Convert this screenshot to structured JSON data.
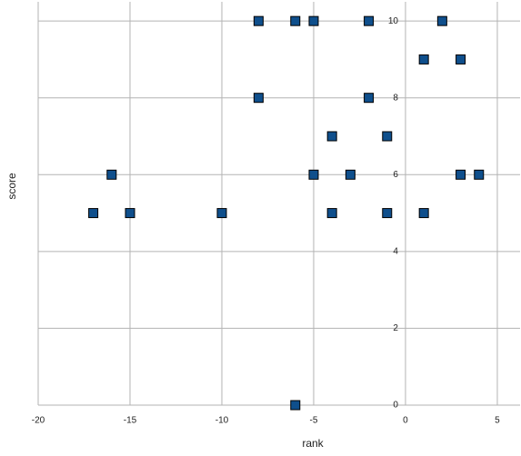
{
  "chart_data": {
    "type": "scatter",
    "x_label": "rank",
    "y_label": "score",
    "x": [
      -8,
      -6,
      -5,
      -2,
      2,
      1,
      3,
      -8,
      -2,
      -4,
      -1,
      -16,
      -5,
      -3,
      3,
      4,
      -17,
      -15,
      -10,
      -4,
      -1,
      1,
      -6
    ],
    "values": [
      10,
      10,
      10,
      10,
      10,
      9,
      9,
      8,
      8,
      7,
      7,
      6,
      6,
      6,
      6,
      6,
      5,
      5,
      5,
      5,
      5,
      5,
      0
    ],
    "color": "#0f4f8c",
    "xlim": [
      -20,
      6.24
    ],
    "ylim": [
      0,
      10.5
    ],
    "xticks": [
      -20,
      -15,
      -10,
      -5,
      0,
      5
    ],
    "yticks": [
      0,
      2,
      4,
      6,
      8,
      10
    ],
    "grid": true
  }
}
